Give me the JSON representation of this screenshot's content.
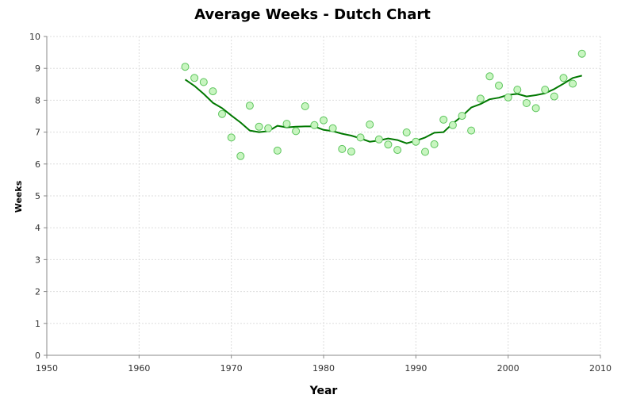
{
  "chart_data": {
    "type": "scatter",
    "title": "Average Weeks - Dutch Chart",
    "xlabel": "Year",
    "ylabel": "Weeks",
    "xlim": [
      1950,
      2010
    ],
    "ylim": [
      0,
      10
    ],
    "xticks": [
      1950,
      1960,
      1970,
      1980,
      1990,
      2000,
      2010
    ],
    "yticks": [
      0,
      1,
      2,
      3,
      4,
      5,
      6,
      7,
      8,
      9,
      10
    ],
    "grid": true,
    "colors": {
      "point_fill": "#c8f5c0",
      "point_stroke": "#5cc45c",
      "trend_line": "#007800",
      "grid": "#dddddd",
      "axis": "#888888"
    },
    "series": [
      {
        "kind": "points",
        "x": [
          1965,
          1966,
          1967,
          1968,
          1969,
          1970,
          1971,
          1972,
          1973,
          1974,
          1975,
          1976,
          1977,
          1978,
          1979,
          1980,
          1981,
          1982,
          1983,
          1984,
          1985,
          1986,
          1987,
          1988,
          1989,
          1990,
          1991,
          1992,
          1993,
          1994,
          1995,
          1996,
          1997,
          1998,
          1999,
          2000,
          2001,
          2002,
          2003,
          2004,
          2005,
          2006,
          2007,
          2008
        ],
        "y": [
          9.05,
          8.7,
          8.57,
          8.28,
          7.57,
          6.83,
          6.25,
          7.83,
          7.17,
          7.12,
          6.42,
          7.26,
          7.03,
          7.81,
          7.22,
          7.37,
          7.12,
          6.47,
          6.39,
          6.83,
          7.24,
          6.77,
          6.61,
          6.44,
          6.99,
          6.7,
          6.38,
          6.62,
          7.39,
          7.22,
          7.51,
          7.05,
          8.05,
          8.75,
          8.46,
          8.09,
          8.33,
          7.91,
          7.75,
          8.33,
          8.12,
          8.7,
          8.52,
          9.46
        ]
      },
      {
        "kind": "trend",
        "x": [
          1965,
          1966,
          1967,
          1968,
          1969,
          1970,
          1971,
          1972,
          1973,
          1974,
          1975,
          1976,
          1977,
          1978,
          1979,
          1980,
          1981,
          1982,
          1983,
          1984,
          1985,
          1986,
          1987,
          1988,
          1989,
          1990,
          1991,
          1992,
          1993,
          1994,
          1995,
          1996,
          1997,
          1998,
          1999,
          2000,
          2001,
          2002,
          2003,
          2004,
          2005,
          2006,
          2007,
          2008
        ],
        "y": [
          8.65,
          8.45,
          8.2,
          7.92,
          7.75,
          7.52,
          7.3,
          7.05,
          7.0,
          7.03,
          7.2,
          7.15,
          7.17,
          7.18,
          7.18,
          7.07,
          7.03,
          6.95,
          6.89,
          6.8,
          6.7,
          6.74,
          6.8,
          6.75,
          6.65,
          6.73,
          6.83,
          6.98,
          7.0,
          7.27,
          7.5,
          7.77,
          7.88,
          8.03,
          8.08,
          8.17,
          8.2,
          8.12,
          8.16,
          8.22,
          8.35,
          8.52,
          8.7,
          8.77
        ]
      }
    ]
  }
}
